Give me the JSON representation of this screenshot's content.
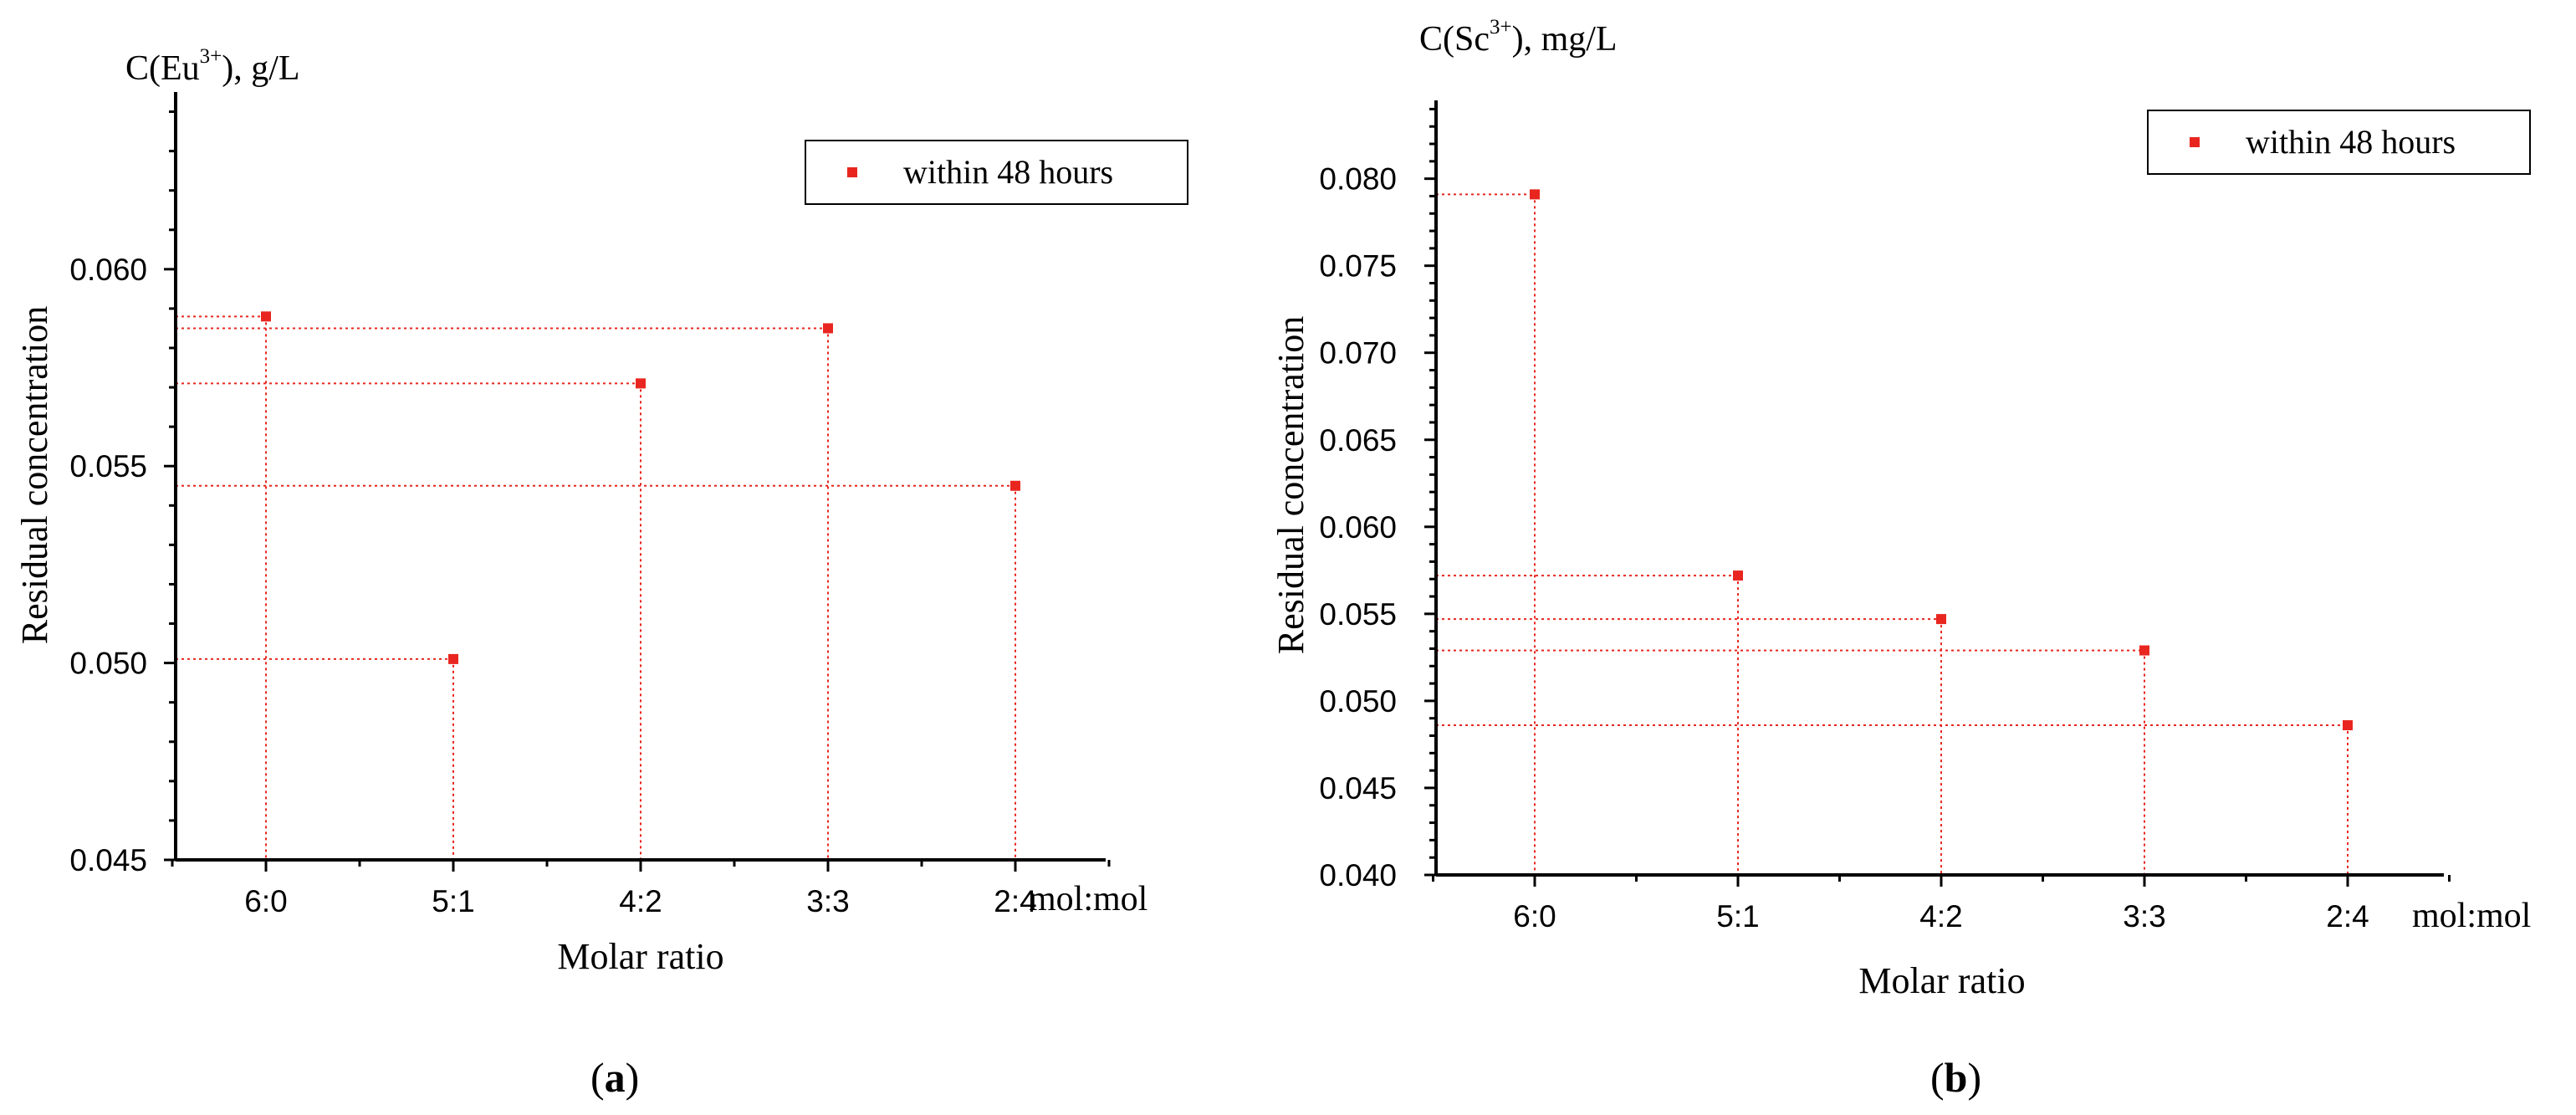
{
  "chart_data": [
    {
      "type": "scatter",
      "panel_caption": "a",
      "ylabel": "Residual concentration",
      "y_unit_prefix": "C(Eu",
      "y_unit_superscript": "3+",
      "y_unit_suffix": "), g/L",
      "xlabel": "Molar ratio",
      "x_unit": "mol:mol",
      "categories": [
        "6:0",
        "5:1",
        "4:2",
        "3:3",
        "2:4"
      ],
      "series": [
        {
          "name": "within 48 hours",
          "values": [
            0.0588,
            0.0501,
            0.0571,
            0.0585,
            0.0545
          ]
        }
      ],
      "ylim": [
        0.045,
        0.0645
      ],
      "yticks": [
        0.045,
        0.05,
        0.055,
        0.06
      ],
      "ytick_labels": [
        "0.045",
        "0.050",
        "0.055",
        "0.060"
      ],
      "legend": "top-right",
      "marker_color": "#e8261f"
    },
    {
      "type": "scatter",
      "panel_caption": "b",
      "ylabel": "Residual concentration",
      "y_unit_prefix": "C(Sc",
      "y_unit_superscript": "3+",
      "y_unit_suffix": "), mg/L",
      "xlabel": "Molar ratio",
      "x_unit": "mol:mol",
      "categories": [
        "6:0",
        "5:1",
        "4:2",
        "3:3",
        "2:4"
      ],
      "series": [
        {
          "name": "within 48 hours",
          "values": [
            0.0791,
            0.0572,
            0.0547,
            0.0529,
            0.0486
          ]
        }
      ],
      "ylim": [
        0.04,
        0.0845
      ],
      "yticks": [
        0.04,
        0.045,
        0.05,
        0.055,
        0.06,
        0.065,
        0.07,
        0.075,
        0.08
      ],
      "ytick_labels": [
        "0.040",
        "0.045",
        "0.050",
        "0.055",
        "0.060",
        "0.065",
        "0.070",
        "0.075",
        "0.080"
      ],
      "legend": "top-right",
      "marker_color": "#e8261f"
    }
  ]
}
